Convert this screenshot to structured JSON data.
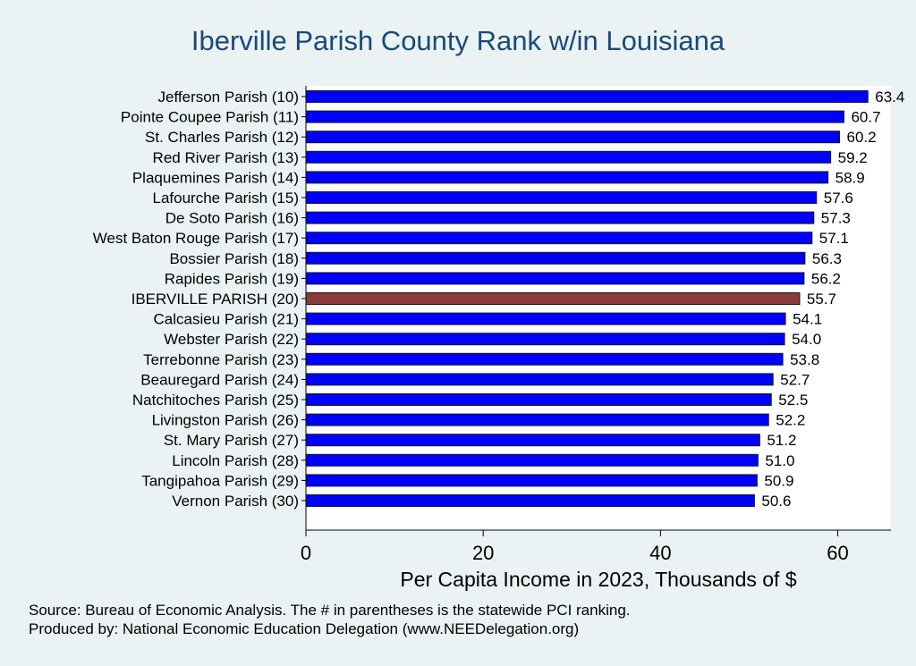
{
  "chart_data": {
    "type": "bar",
    "orientation": "horizontal",
    "title": "Iberville Parish County Rank w/in Louisiana",
    "xlabel": "Per Capita Income in 2023, Thousands of $",
    "xlim": [
      0,
      66
    ],
    "xticks": [
      "0",
      "20",
      "40",
      "60"
    ],
    "grid": false,
    "colors": {
      "bar": "#0000ff",
      "highlight": "#8b3a3a",
      "bar_edge": "#1a1a1a"
    },
    "highlight_category": "IBERVILLE PARISH (20)",
    "categories": [
      "Jefferson Parish (10)",
      "Pointe Coupee Parish (11)",
      "St. Charles Parish (12)",
      "Red River Parish (13)",
      "Plaquemines Parish (14)",
      "Lafourche Parish (15)",
      "De Soto Parish (16)",
      "West Baton Rouge Parish (17)",
      "Bossier Parish (18)",
      "Rapides Parish (19)",
      "IBERVILLE PARISH (20)",
      "Calcasieu Parish (21)",
      "Webster Parish (22)",
      "Terrebonne Parish (23)",
      "Beauregard Parish (24)",
      "Natchitoches Parish (25)",
      "Livingston Parish (26)",
      "St. Mary Parish (27)",
      "Lincoln Parish (28)",
      "Tangipahoa Parish (29)",
      "Vernon Parish (30)"
    ],
    "values": [
      63.4,
      60.7,
      60.2,
      59.2,
      58.9,
      57.6,
      57.3,
      57.1,
      56.3,
      56.2,
      55.7,
      54.1,
      54.0,
      53.8,
      52.7,
      52.5,
      52.2,
      51.2,
      51.0,
      50.9,
      50.6
    ],
    "value_labels": [
      "63.4",
      "60.7",
      "60.2",
      "59.2",
      "58.9",
      "57.6",
      "57.3",
      "57.1",
      "56.3",
      "56.2",
      "55.7",
      "54.1",
      "54.0",
      "53.8",
      "52.7",
      "52.5",
      "52.2",
      "51.2",
      "51.0",
      "50.9",
      "50.6"
    ]
  },
  "footer": {
    "source": "Source: Bureau of Economic Analysis. The # in parentheses is the statewide PCI ranking.",
    "produced_by": "Produced by: National Economic Education Delegation (www.NEEDelegation.org)"
  }
}
